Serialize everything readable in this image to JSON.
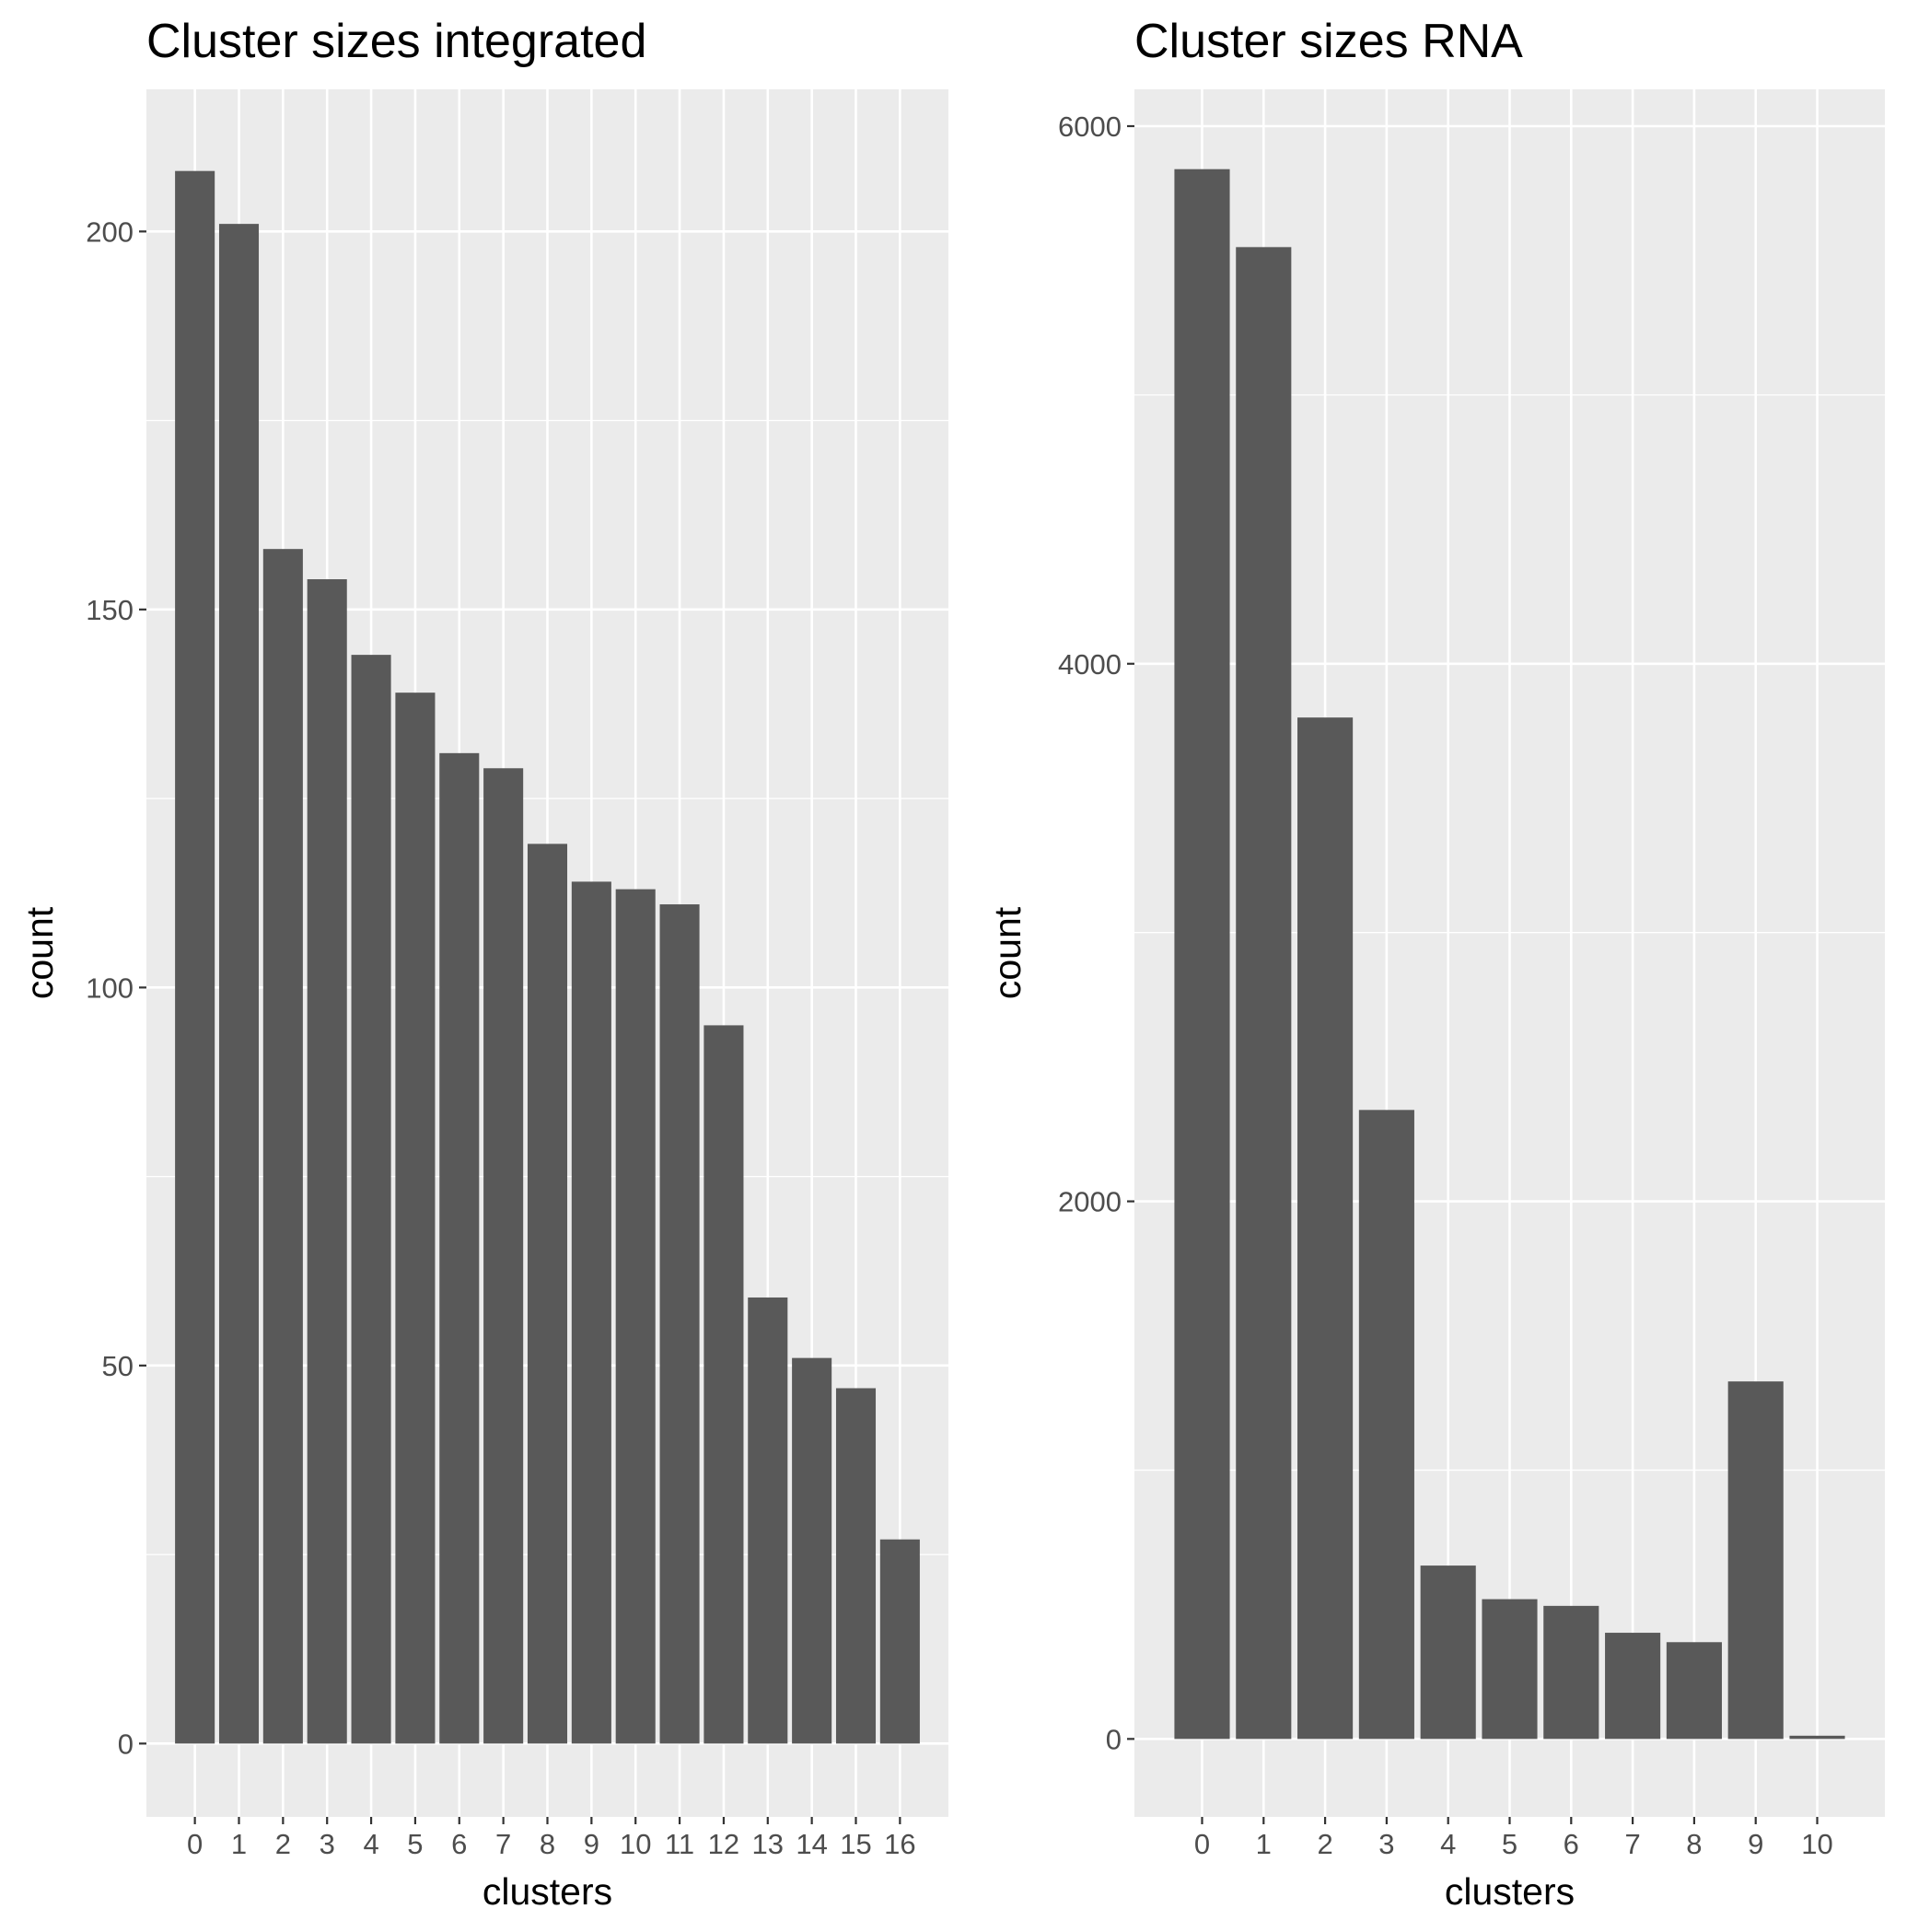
{
  "colors": {
    "panel_bg": "#ebebeb",
    "grid": "#ffffff",
    "bar": "#595959",
    "tick_text": "#4d4d4d",
    "tick_mark": "#333333"
  },
  "chart_data": [
    {
      "type": "bar",
      "title": "Cluster sizes integrated",
      "xlabel": "clusters",
      "ylabel": "count",
      "ylim": [
        -9.7,
        218.8
      ],
      "yticks": [
        0,
        50,
        100,
        150,
        200
      ],
      "grid": true,
      "categories": [
        "0",
        "1",
        "2",
        "3",
        "4",
        "5",
        "6",
        "7",
        "8",
        "9",
        "10",
        "11",
        "12",
        "13",
        "14",
        "15",
        "16"
      ],
      "values": [
        208,
        201,
        158,
        154,
        144,
        139,
        131,
        129,
        119,
        114,
        113,
        111,
        95,
        59,
        51,
        47,
        27
      ]
    },
    {
      "type": "bar",
      "title": "Cluster sizes RNA",
      "xlabel": "clusters",
      "ylabel": "count",
      "ylim": [
        -290,
        6137
      ],
      "yticks": [
        0,
        2000,
        4000,
        6000
      ],
      "grid": true,
      "categories": [
        "0",
        "1",
        "2",
        "3",
        "4",
        "5",
        "6",
        "7",
        "8",
        "9",
        "10"
      ],
      "values": [
        5840,
        5550,
        3800,
        2340,
        645,
        520,
        495,
        395,
        360,
        1330,
        12
      ]
    }
  ]
}
